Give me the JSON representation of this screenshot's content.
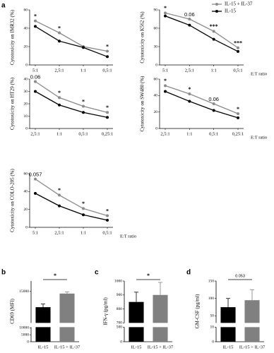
{
  "chart_data": [
    {
      "type": "line",
      "panel": "a",
      "ylabel": "Cytotoxicity on IMR32 (%)",
      "categories": [
        "5:1",
        "2,5:1",
        "1:1",
        "0,5:1"
      ],
      "series": [
        {
          "color": "#8a8a8a",
          "values": [
            48,
            35,
            20,
            15
          ]
        },
        {
          "color": "#000000",
          "values": [
            42,
            26,
            19,
            9
          ]
        }
      ],
      "annotations": [
        "*",
        "*",
        null,
        "*"
      ],
      "ylim": [
        0,
        60
      ],
      "yticks": [
        0,
        20,
        40,
        60
      ]
    },
    {
      "type": "line",
      "ylabel": "Cytotoxicity on K562 (%)",
      "xlabel": "E:T ratio",
      "categories": [
        "5:1",
        "2,5:1",
        "1:1",
        "0,5:1"
      ],
      "series": [
        {
          "name": "IL-15 + IL-37",
          "color": "#8a8a8a",
          "values": [
            85,
            75,
            55,
            28
          ]
        },
        {
          "name": "IL-15",
          "color": "#000000",
          "values": [
            80,
            65,
            42,
            22
          ]
        }
      ],
      "annotations": [
        "*",
        "0.06",
        "***",
        "***"
      ],
      "ylim": [
        0,
        90
      ],
      "yticks": [
        0,
        30,
        60,
        90
      ],
      "legend": "upper right"
    },
    {
      "type": "line",
      "ylabel": "Cytotoxicity on HT29 (%)",
      "categories": [
        "2,5:1",
        "1:1",
        "0,5:1",
        "0,25:1"
      ],
      "series": [
        {
          "color": "#8a8a8a",
          "values": [
            38,
            25,
            18,
            13
          ]
        },
        {
          "color": "#000000",
          "values": [
            30,
            19,
            13,
            9
          ]
        }
      ],
      "annotations": [
        "0.06",
        "*",
        "*",
        "*"
      ],
      "ylim": [
        0,
        40
      ],
      "yticks": [
        0,
        10,
        20,
        30,
        40
      ]
    },
    {
      "type": "line",
      "ylabel": "Cytotoxicity on SW480 (%)",
      "xlabel": "E:T ratio",
      "categories": [
        "2,5:1",
        "1:1",
        "0,5:1",
        "0,25:1"
      ],
      "series": [
        {
          "color": "#8a8a8a",
          "values": [
            52,
            42,
            30,
            18
          ]
        },
        {
          "color": "#000000",
          "values": [
            45,
            33,
            22,
            13
          ]
        }
      ],
      "annotations": [
        "*",
        "*",
        "0.06",
        "*"
      ],
      "ylim": [
        0,
        60
      ],
      "yticks": [
        0,
        20,
        40,
        60
      ]
    },
    {
      "type": "line",
      "ylabel": "Cytotoxicity on COLO-205 (%)",
      "xlabel": "E:T ratio",
      "categories": [
        "5:1",
        "2,5:1",
        "1:1",
        "0,5:1"
      ],
      "series": [
        {
          "color": "#8a8a8a",
          "values": [
            54,
            36,
            21,
            13
          ]
        },
        {
          "color": "#000000",
          "values": [
            38,
            24,
            14,
            8
          ]
        }
      ],
      "annotations": [
        "0.057",
        "*",
        "*",
        "*"
      ],
      "ylim": [
        0,
        60
      ],
      "yticks": [
        0,
        20,
        40,
        60
      ]
    },
    {
      "type": "bar",
      "panel": "b",
      "ylabel": "CD69 (MFI)",
      "categories": [
        "IL-15",
        "IL-15 + IL-37"
      ],
      "values": [
        13500,
        14800
      ],
      "errors": [
        300,
        150
      ],
      "colors": [
        "#000000",
        "#808080"
      ],
      "annotation": "*",
      "ylim": [
        0,
        16000
      ],
      "ybreak": [
        10500,
        12000
      ],
      "yticks": [
        0,
        5000,
        10000,
        15000
      ]
    },
    {
      "type": "bar",
      "panel": "c",
      "ylabel": "IFN-γ (pg/ml)",
      "categories": [
        "IL-15",
        "IL-15 + IL-37"
      ],
      "values": [
        850,
        900
      ],
      "errors": [
        70,
        90
      ],
      "colors": [
        "#000000",
        "#808080"
      ],
      "annotation": "*",
      "ylim": [
        0,
        1000
      ],
      "ybreak": [
        500,
        700
      ],
      "yticks": [
        0,
        500,
        700,
        800,
        900,
        1000
      ]
    },
    {
      "type": "bar",
      "panel": "d",
      "ylabel": "GM-CSF (pg/ml)",
      "categories": [
        "IL-15",
        "IL-15 + IL-37"
      ],
      "values": [
        75,
        95
      ],
      "errors": [
        25,
        30
      ],
      "colors": [
        "#000000",
        "#808080"
      ],
      "annotation": "0.053",
      "ylim": [
        0,
        150
      ],
      "ybreak": [
        10,
        30
      ],
      "yticks": [
        0,
        10,
        50,
        100,
        150
      ]
    }
  ]
}
